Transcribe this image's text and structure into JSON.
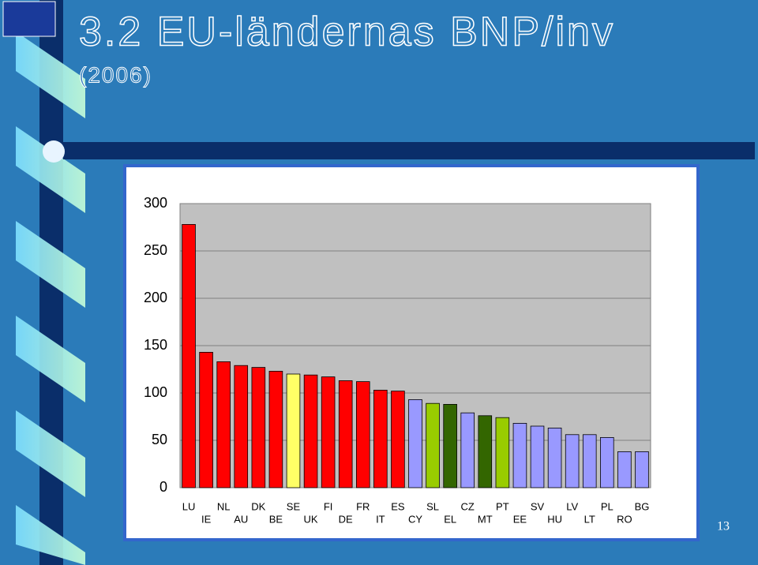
{
  "chart_data": {
    "type": "bar",
    "title": "3.2 EU-ländernas BNP/inv",
    "subtitle": "(2006)",
    "categories": [
      "LU",
      "IE",
      "NL",
      "AU",
      "DK",
      "BE",
      "SE",
      "UK",
      "FI",
      "DE",
      "FR",
      "IT",
      "ES",
      "CY",
      "SL",
      "EL",
      "CZ",
      "MT",
      "PT",
      "EE",
      "SV",
      "HU",
      "LV",
      "LT",
      "PL",
      "RO",
      "BG"
    ],
    "values": [
      278,
      143,
      133,
      129,
      127,
      123,
      120,
      119,
      117,
      113,
      112,
      103,
      102,
      93,
      89,
      88,
      79,
      76,
      74,
      68,
      65,
      63,
      56,
      56,
      53,
      38,
      38
    ],
    "colors": [
      "#ff0000",
      "#ff0000",
      "#ff0000",
      "#ff0000",
      "#ff0000",
      "#ff0000",
      "#ffff66",
      "#ff0000",
      "#ff0000",
      "#ff0000",
      "#ff0000",
      "#ff0000",
      "#ff0000",
      "#9999ff",
      "#99cc00",
      "#336600",
      "#9999ff",
      "#336600",
      "#99cc00",
      "#9999ff",
      "#9999ff",
      "#9999ff",
      "#9999ff",
      "#9999ff",
      "#9999ff",
      "#9999ff",
      "#9999ff"
    ],
    "ylim": [
      0,
      300
    ],
    "yticks": [
      0,
      50,
      100,
      150,
      200,
      250,
      300
    ],
    "grid": true
  },
  "page_number": "13"
}
